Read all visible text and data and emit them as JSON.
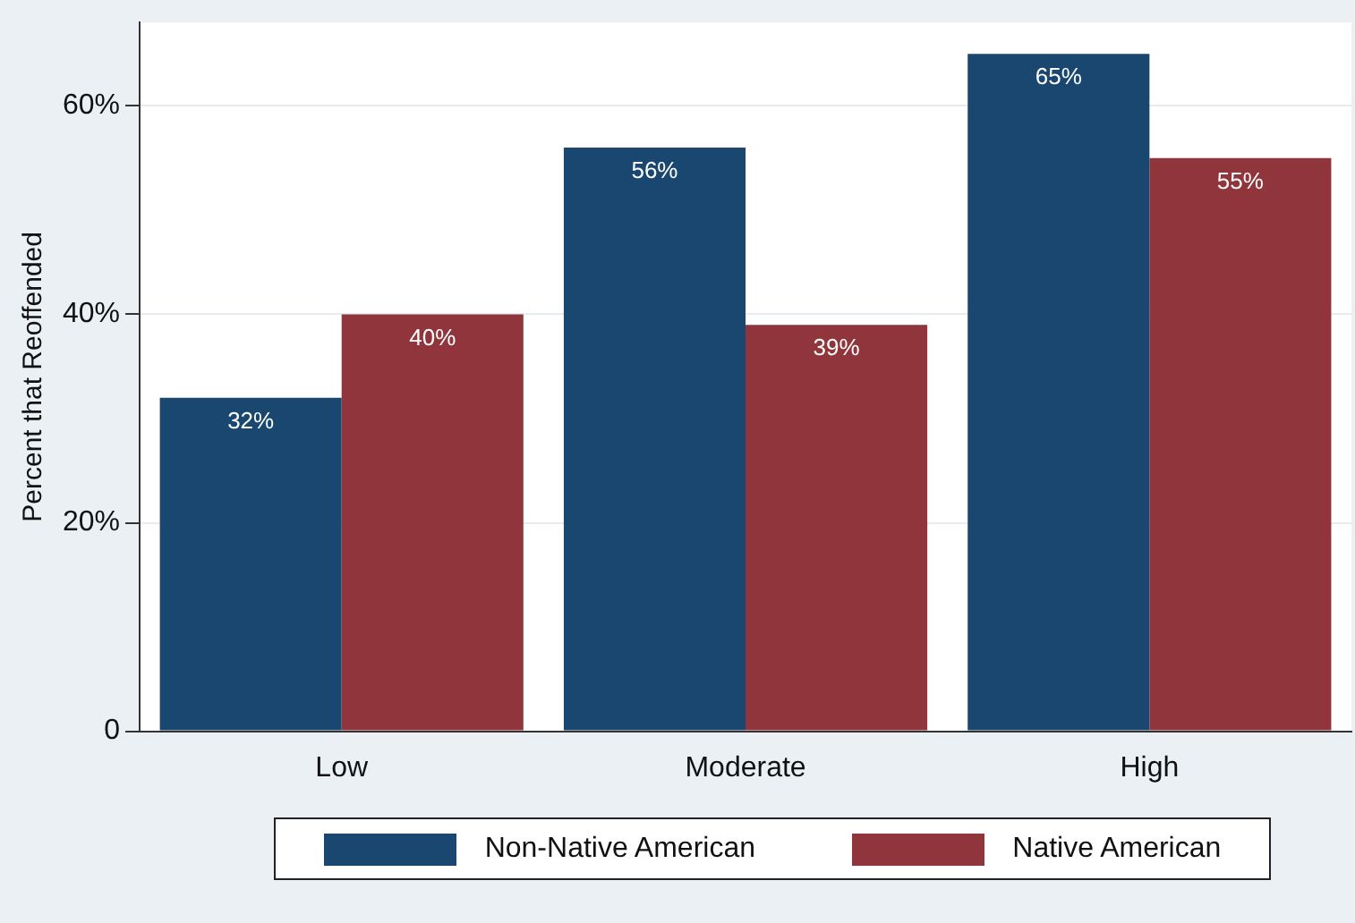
{
  "chart_data": {
    "type": "bar",
    "ylabel": "Percent that Reoffended",
    "categories": [
      "Low",
      "Moderate",
      "High"
    ],
    "series": [
      {
        "name": "Non-Native American",
        "color": "#1a476f",
        "values": [
          32,
          56,
          65
        ],
        "value_labels": [
          "32%",
          "56%",
          "65%"
        ]
      },
      {
        "name": "Native American",
        "color": "#90353b",
        "values": [
          40,
          39,
          55
        ],
        "value_labels": [
          "40%",
          "39%",
          "55%"
        ]
      }
    ],
    "ylim": [
      0,
      68
    ],
    "yticks": [
      {
        "value": 0,
        "label": "0"
      },
      {
        "value": 20,
        "label": "20%"
      },
      {
        "value": 40,
        "label": "40%"
      },
      {
        "value": 60,
        "label": "60%"
      }
    ],
    "grid": "y",
    "legend": "bottom"
  }
}
